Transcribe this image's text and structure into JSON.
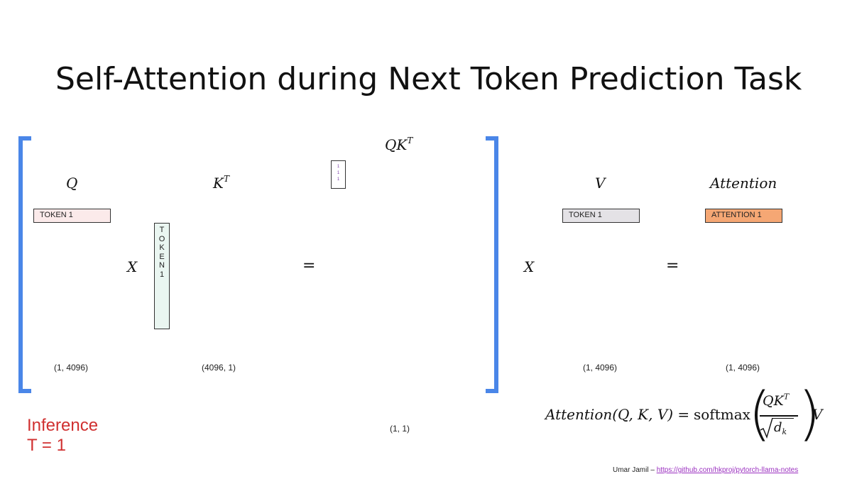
{
  "title": "Self-Attention during Next Token Prediction Task",
  "matrices": {
    "q": {
      "label": "Q",
      "token": "TOKEN 1",
      "dims": "(1, 4096)"
    },
    "kt": {
      "label": "K",
      "superscript": "T",
      "token_letters": [
        "T",
        "O",
        "K",
        "E",
        "N",
        "1"
      ],
      "dims": "(4096, 1)"
    },
    "qkt": {
      "label": "QK",
      "superscript": "T",
      "cells": [
        "1",
        "1",
        "1"
      ],
      "dims": "(1, 1)"
    },
    "v": {
      "label": "V",
      "token": "TOKEN 1",
      "dims": "(1, 4096)"
    },
    "attention": {
      "label": "Attention",
      "token": "ATTENTION 1",
      "dims": "(1, 4096)"
    }
  },
  "operators": {
    "multiply_1": "X",
    "equals_1": "=",
    "multiply_2": "X",
    "equals_2": "="
  },
  "formula": {
    "lhs": "Attention(Q, K, V) = ",
    "func": "softmax",
    "numerator": "QK",
    "numerator_sup": "T",
    "denominator": "d",
    "denominator_sub": "k",
    "tail": "V"
  },
  "inference": {
    "line1": "Inference",
    "line2": "T = 1"
  },
  "credit": {
    "author": "Umar Jamil – ",
    "url": "https://github.com/hkproj/pytorch-llama-notes"
  },
  "colors": {
    "bracket": "#4a86e8",
    "q_fill": "#fbeaea",
    "kt_fill": "#eaf6f1",
    "v_fill": "#e4e2e6",
    "attention_fill": "#f5a774",
    "inference_text": "#d03030",
    "link": "#9b30c0"
  }
}
